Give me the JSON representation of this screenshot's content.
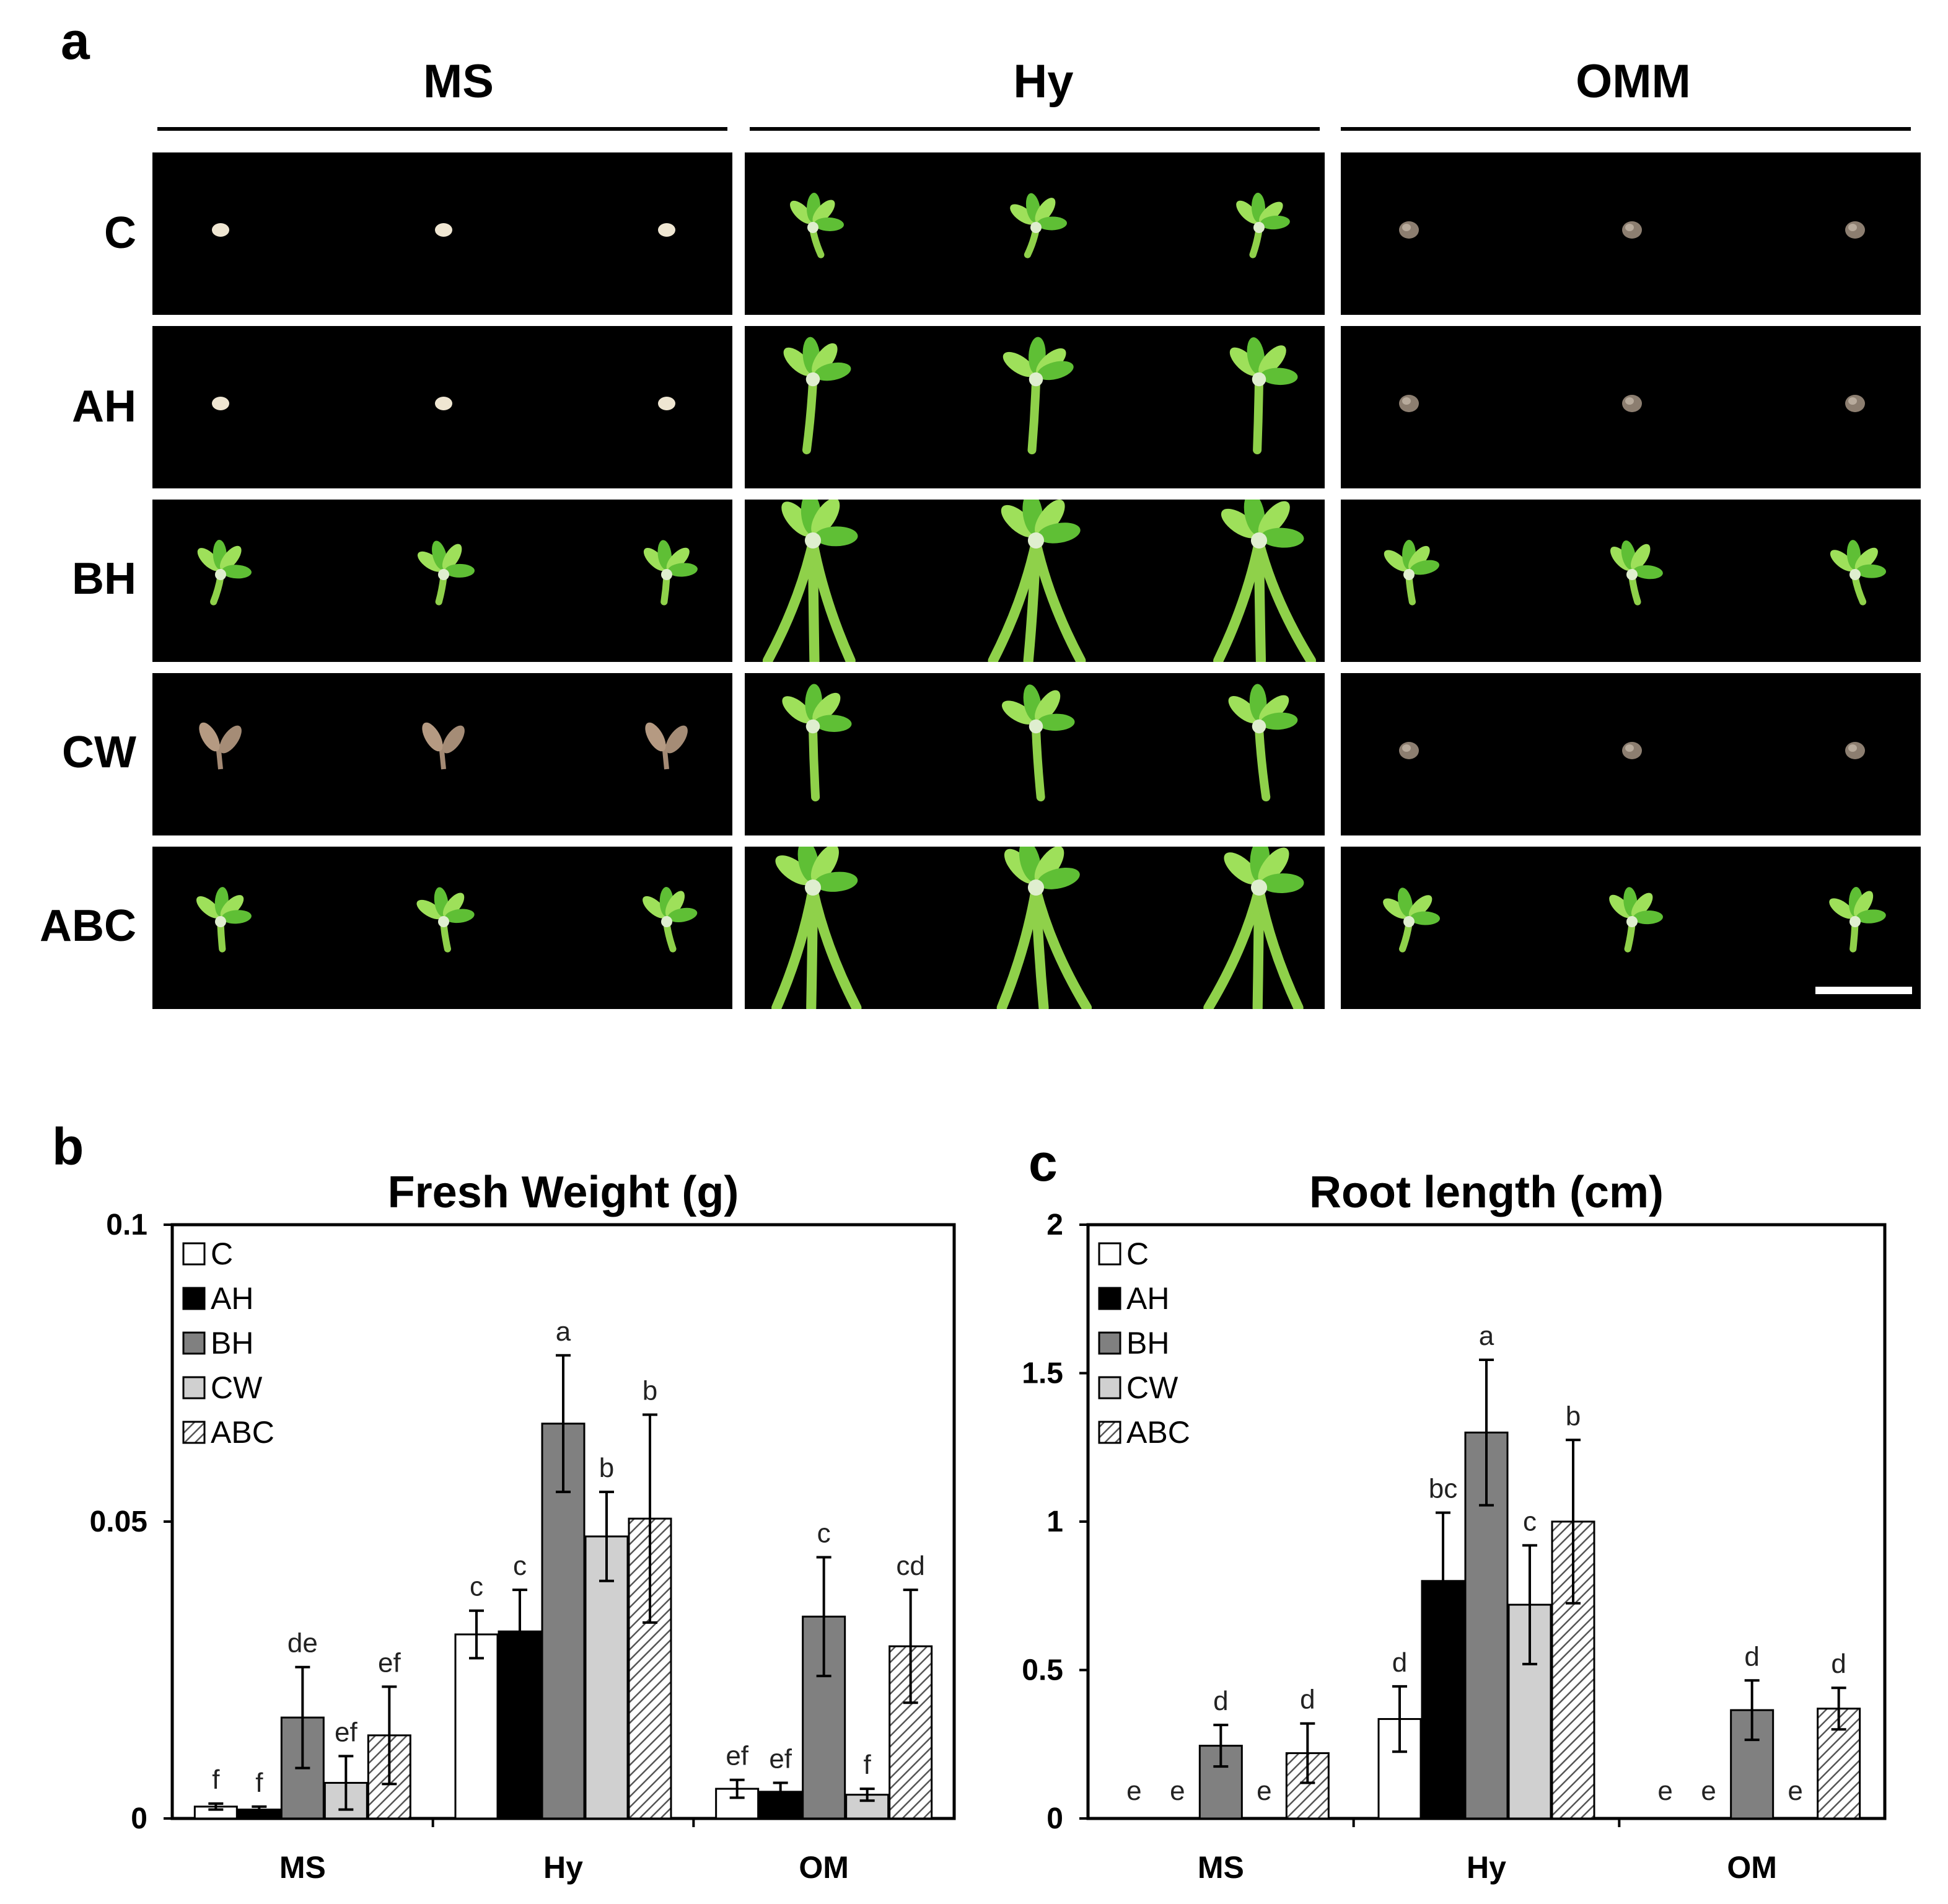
{
  "panel_a": {
    "letter": "a",
    "columns": [
      "MS",
      "Hy",
      "OMM"
    ],
    "rows": [
      "C",
      "AH",
      "BH",
      "CW",
      "ABC"
    ],
    "seedling_grid": [
      [
        "seed",
        "seed",
        "seed",
        "small",
        "small",
        "small",
        "brown",
        "brown",
        "brown"
      ],
      [
        "seed",
        "seed",
        "seed",
        "medium",
        "medium",
        "medium",
        "brown",
        "brown",
        "brown"
      ],
      [
        "small",
        "small",
        "small",
        "large",
        "large",
        "large",
        "small",
        "small",
        "small"
      ],
      [
        "tan",
        "tan",
        "tan",
        "medium",
        "medium",
        "medium",
        "brown",
        "brown",
        "brown"
      ],
      [
        "small",
        "small",
        "small",
        "large",
        "large",
        "large",
        "small",
        "small",
        "small"
      ]
    ]
  },
  "panel_b": {
    "letter": "b",
    "chart_data": {
      "type": "bar",
      "title": "Fresh Weight (g)",
      "categories": [
        "MS",
        "Hy",
        "OM"
      ],
      "ylim": [
        0,
        0.1
      ],
      "yticks": [
        "0",
        "0.05",
        "0.1"
      ],
      "legend_position": "top-left",
      "series": [
        {
          "name": "C",
          "values": [
            0.002,
            0.031,
            0.005
          ],
          "errors": [
            0.0005,
            0.004,
            0.0015
          ],
          "labels": [
            "f",
            "c",
            "ef"
          ]
        },
        {
          "name": "AH",
          "values": [
            0.0015,
            0.0315,
            0.0045
          ],
          "errors": [
            0.0005,
            0.007,
            0.0015
          ],
          "labels": [
            "f",
            "c",
            "ef"
          ]
        },
        {
          "name": "BH",
          "values": [
            0.017,
            0.0665,
            0.034
          ],
          "errors": [
            0.0085,
            0.0115,
            0.01
          ],
          "labels": [
            "de",
            "a",
            "c"
          ]
        },
        {
          "name": "CW",
          "values": [
            0.006,
            0.0475,
            0.004
          ],
          "errors": [
            0.0045,
            0.0075,
            0.001
          ],
          "labels": [
            "ef",
            "b",
            "f"
          ]
        },
        {
          "name": "ABC",
          "values": [
            0.014,
            0.0505,
            0.029
          ],
          "errors": [
            0.0082,
            0.0175,
            0.0095
          ],
          "labels": [
            "ef",
            "b",
            "cd"
          ]
        }
      ]
    }
  },
  "panel_c": {
    "letter": "c",
    "chart_data": {
      "type": "bar",
      "title": "Root length (cm)",
      "categories": [
        "MS",
        "Hy",
        "OM"
      ],
      "ylim": [
        0,
        2
      ],
      "yticks": [
        "0",
        "0.5",
        "1",
        "1.5",
        "2"
      ],
      "legend_position": "top-left",
      "series": [
        {
          "name": "C",
          "values": [
            0,
            0.335,
            0
          ],
          "errors": [
            0,
            0.11,
            0
          ],
          "labels": [
            "e",
            "d",
            "e"
          ]
        },
        {
          "name": "AH",
          "values": [
            0,
            0.8,
            0
          ],
          "errors": [
            0,
            0.23,
            0
          ],
          "labels": [
            "e",
            "bc",
            "e"
          ]
        },
        {
          "name": "BH",
          "values": [
            0.245,
            1.3,
            0.365
          ],
          "errors": [
            0.07,
            0.245,
            0.1
          ],
          "labels": [
            "d",
            "a",
            "d"
          ]
        },
        {
          "name": "CW",
          "values": [
            0,
            0.72,
            0
          ],
          "errors": [
            0,
            0.2,
            0
          ],
          "labels": [
            "e",
            "c",
            "e"
          ]
        },
        {
          "name": "ABC",
          "values": [
            0.22,
            1.0,
            0.37
          ],
          "errors": [
            0.1,
            0.275,
            0.07
          ],
          "labels": [
            "d",
            "b",
            "d"
          ]
        }
      ]
    }
  },
  "colors": {
    "C": "#ffffff",
    "AH": "#000000",
    "BH": "#808080",
    "CW": "#d0d0d0",
    "ABC": "hatch"
  }
}
